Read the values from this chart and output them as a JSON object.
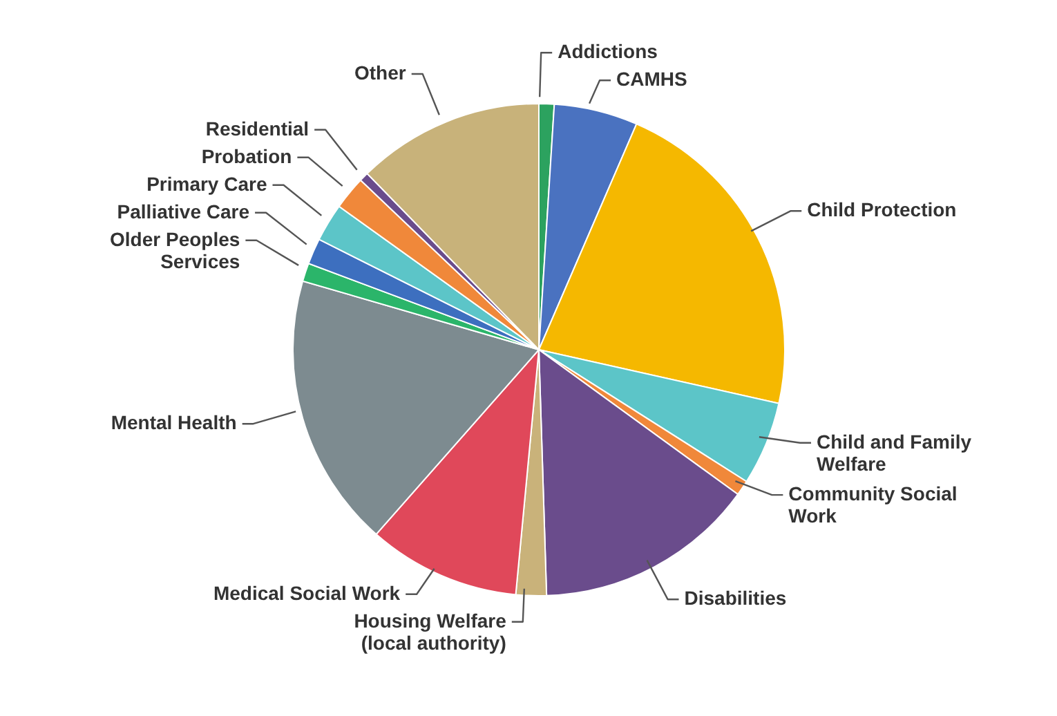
{
  "chart_data": {
    "type": "pie",
    "categories": [
      "Addictions",
      "CAMHS",
      "Child Protection",
      "Child and Family Welfare",
      "Community Social Work",
      "Disabilities",
      "Housing Welfare (local authority)",
      "Medical Social Work",
      "Mental Health",
      "Older Peoples Services",
      "Palliative Care",
      "Primary Care",
      "Probation",
      "Residential",
      "Other"
    ],
    "values": [
      1,
      5.5,
      22,
      5.5,
      1,
      14.5,
      2,
      10,
      18,
      1.2,
      1.7,
      2.5,
      2.2,
      0.6,
      12.3
    ],
    "colors": [
      "#2ca25f",
      "#4a72c0",
      "#f5b800",
      "#5cc5c8",
      "#f0883a",
      "#6a4c8c",
      "#c9b27a",
      "#e0485a",
      "#7d8b90",
      "#2bb56a",
      "#3d6fbf",
      "#5cc5c8",
      "#f0883a",
      "#6a4c8c",
      "#c8b27a"
    ]
  }
}
